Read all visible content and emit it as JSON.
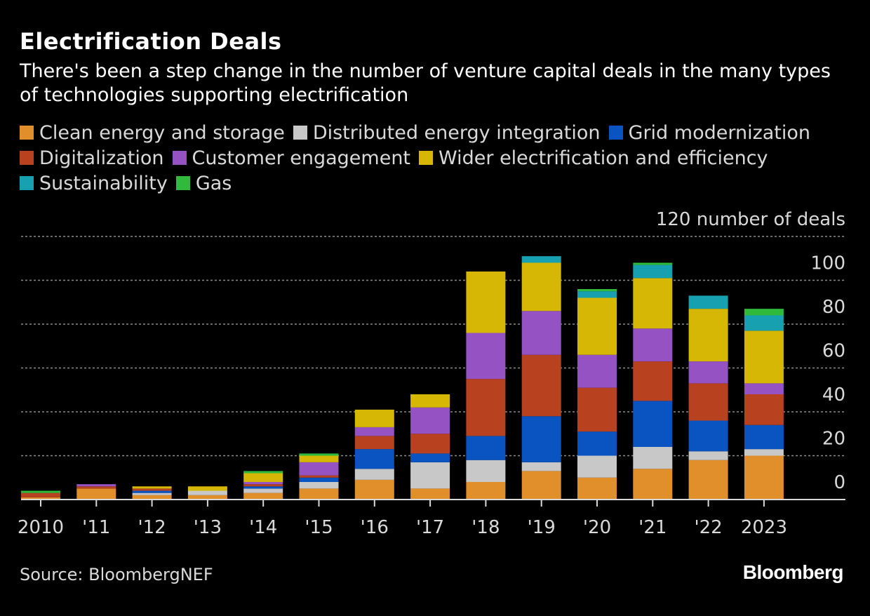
{
  "chart_data": {
    "type": "bar",
    "stacked": true,
    "title": "Electrification Deals",
    "subtitle": "There's been a step change in the number of venture capital deals in the many types of technologies supporting electrification",
    "ylabel": "number of deals",
    "ylim": [
      0,
      120
    ],
    "yticks": [
      0,
      20,
      40,
      60,
      80,
      100,
      120
    ],
    "grid": true,
    "legend_position": "top",
    "categories": [
      "2010",
      "'11",
      "'12",
      "'13",
      "'14",
      "'15",
      "'16",
      "'17",
      "'18",
      "'19",
      "'20",
      "'21",
      "'22",
      "2023"
    ],
    "series": [
      {
        "name": "Clean energy and storage",
        "color": "#e08f2a",
        "values": [
          1,
          5,
          2,
          2,
          3,
          5,
          9,
          5,
          8,
          13,
          10,
          14,
          18,
          20
        ]
      },
      {
        "name": "Distributed energy integration",
        "color": "#c8c8c8",
        "values": [
          0,
          0,
          1,
          2,
          2,
          3,
          5,
          12,
          10,
          4,
          10,
          10,
          4,
          3
        ]
      },
      {
        "name": "Grid modernization",
        "color": "#0a54c2",
        "values": [
          0,
          0,
          1,
          0,
          1,
          2,
          9,
          4,
          11,
          21,
          11,
          21,
          14,
          11
        ]
      },
      {
        "name": "Digitalization",
        "color": "#b8411f",
        "values": [
          2,
          1,
          1,
          0,
          1,
          1,
          6,
          9,
          26,
          28,
          20,
          18,
          17,
          14
        ]
      },
      {
        "name": "Customer engagement",
        "color": "#9452c2",
        "values": [
          0,
          1,
          0,
          0,
          1,
          6,
          4,
          12,
          21,
          20,
          15,
          15,
          10,
          5
        ]
      },
      {
        "name": "Wider electrification and efficiency",
        "color": "#d7b705",
        "values": [
          0,
          0,
          1,
          2,
          4,
          3,
          8,
          6,
          28,
          22,
          26,
          23,
          24,
          24
        ]
      },
      {
        "name": "Sustainability",
        "color": "#17a0b0",
        "values": [
          0,
          0,
          0,
          0,
          0,
          0,
          0,
          0,
          0,
          3,
          3,
          6,
          6,
          7
        ]
      },
      {
        "name": "Gas",
        "color": "#2fba3c",
        "values": [
          1,
          0,
          0,
          0,
          1,
          1,
          0,
          0,
          0,
          0,
          1,
          1,
          0,
          3
        ]
      }
    ]
  },
  "source": "Source: BloombergNEF",
  "brand": "Bloomberg"
}
